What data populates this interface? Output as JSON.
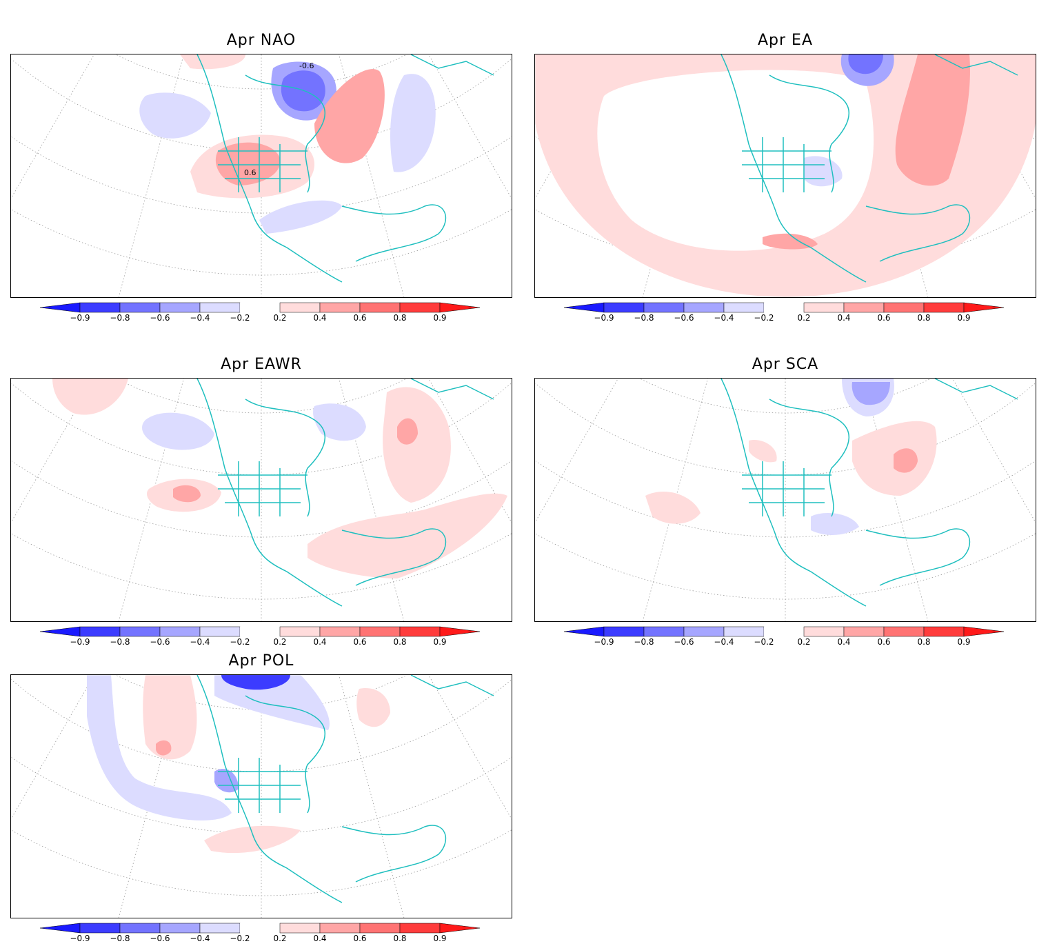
{
  "panels": [
    {
      "id": "nao",
      "title": "Apr NAO",
      "contour_labels": [
        "-0.6",
        "0.6"
      ]
    },
    {
      "id": "ea",
      "title": "Apr EA",
      "contour_labels": []
    },
    {
      "id": "eawr",
      "title": "Apr EAWR",
      "contour_labels": []
    },
    {
      "id": "sca",
      "title": "Apr SCA",
      "contour_labels": []
    },
    {
      "id": "pol",
      "title": "Apr POL",
      "contour_labels": []
    }
  ],
  "colorbar": {
    "labels": [
      "−0.9",
      "−0.8",
      "−0.6",
      "−0.4",
      "−0.2",
      "0.2",
      "0.4",
      "0.6",
      "0.8",
      "0.9"
    ],
    "colors": [
      "#1a1aff",
      "#3c3cff",
      "#7373ff",
      "#a6a6ff",
      "#dcdcff",
      "#ffffff",
      "#ffdcdc",
      "#ffa6a6",
      "#ff7373",
      "#ff3c3c",
      "#ff1a1a"
    ]
  },
  "colors": {
    "coast": "#1fbfbf",
    "neg_light": "#dcdcff",
    "neg_mid": "#a6a6ff",
    "neg_strong": "#7373ff",
    "neg_dark": "#3c3cff",
    "pos_light": "#ffdcdc",
    "pos_mid": "#ffa6a6",
    "pos_strong": "#ff7373"
  }
}
